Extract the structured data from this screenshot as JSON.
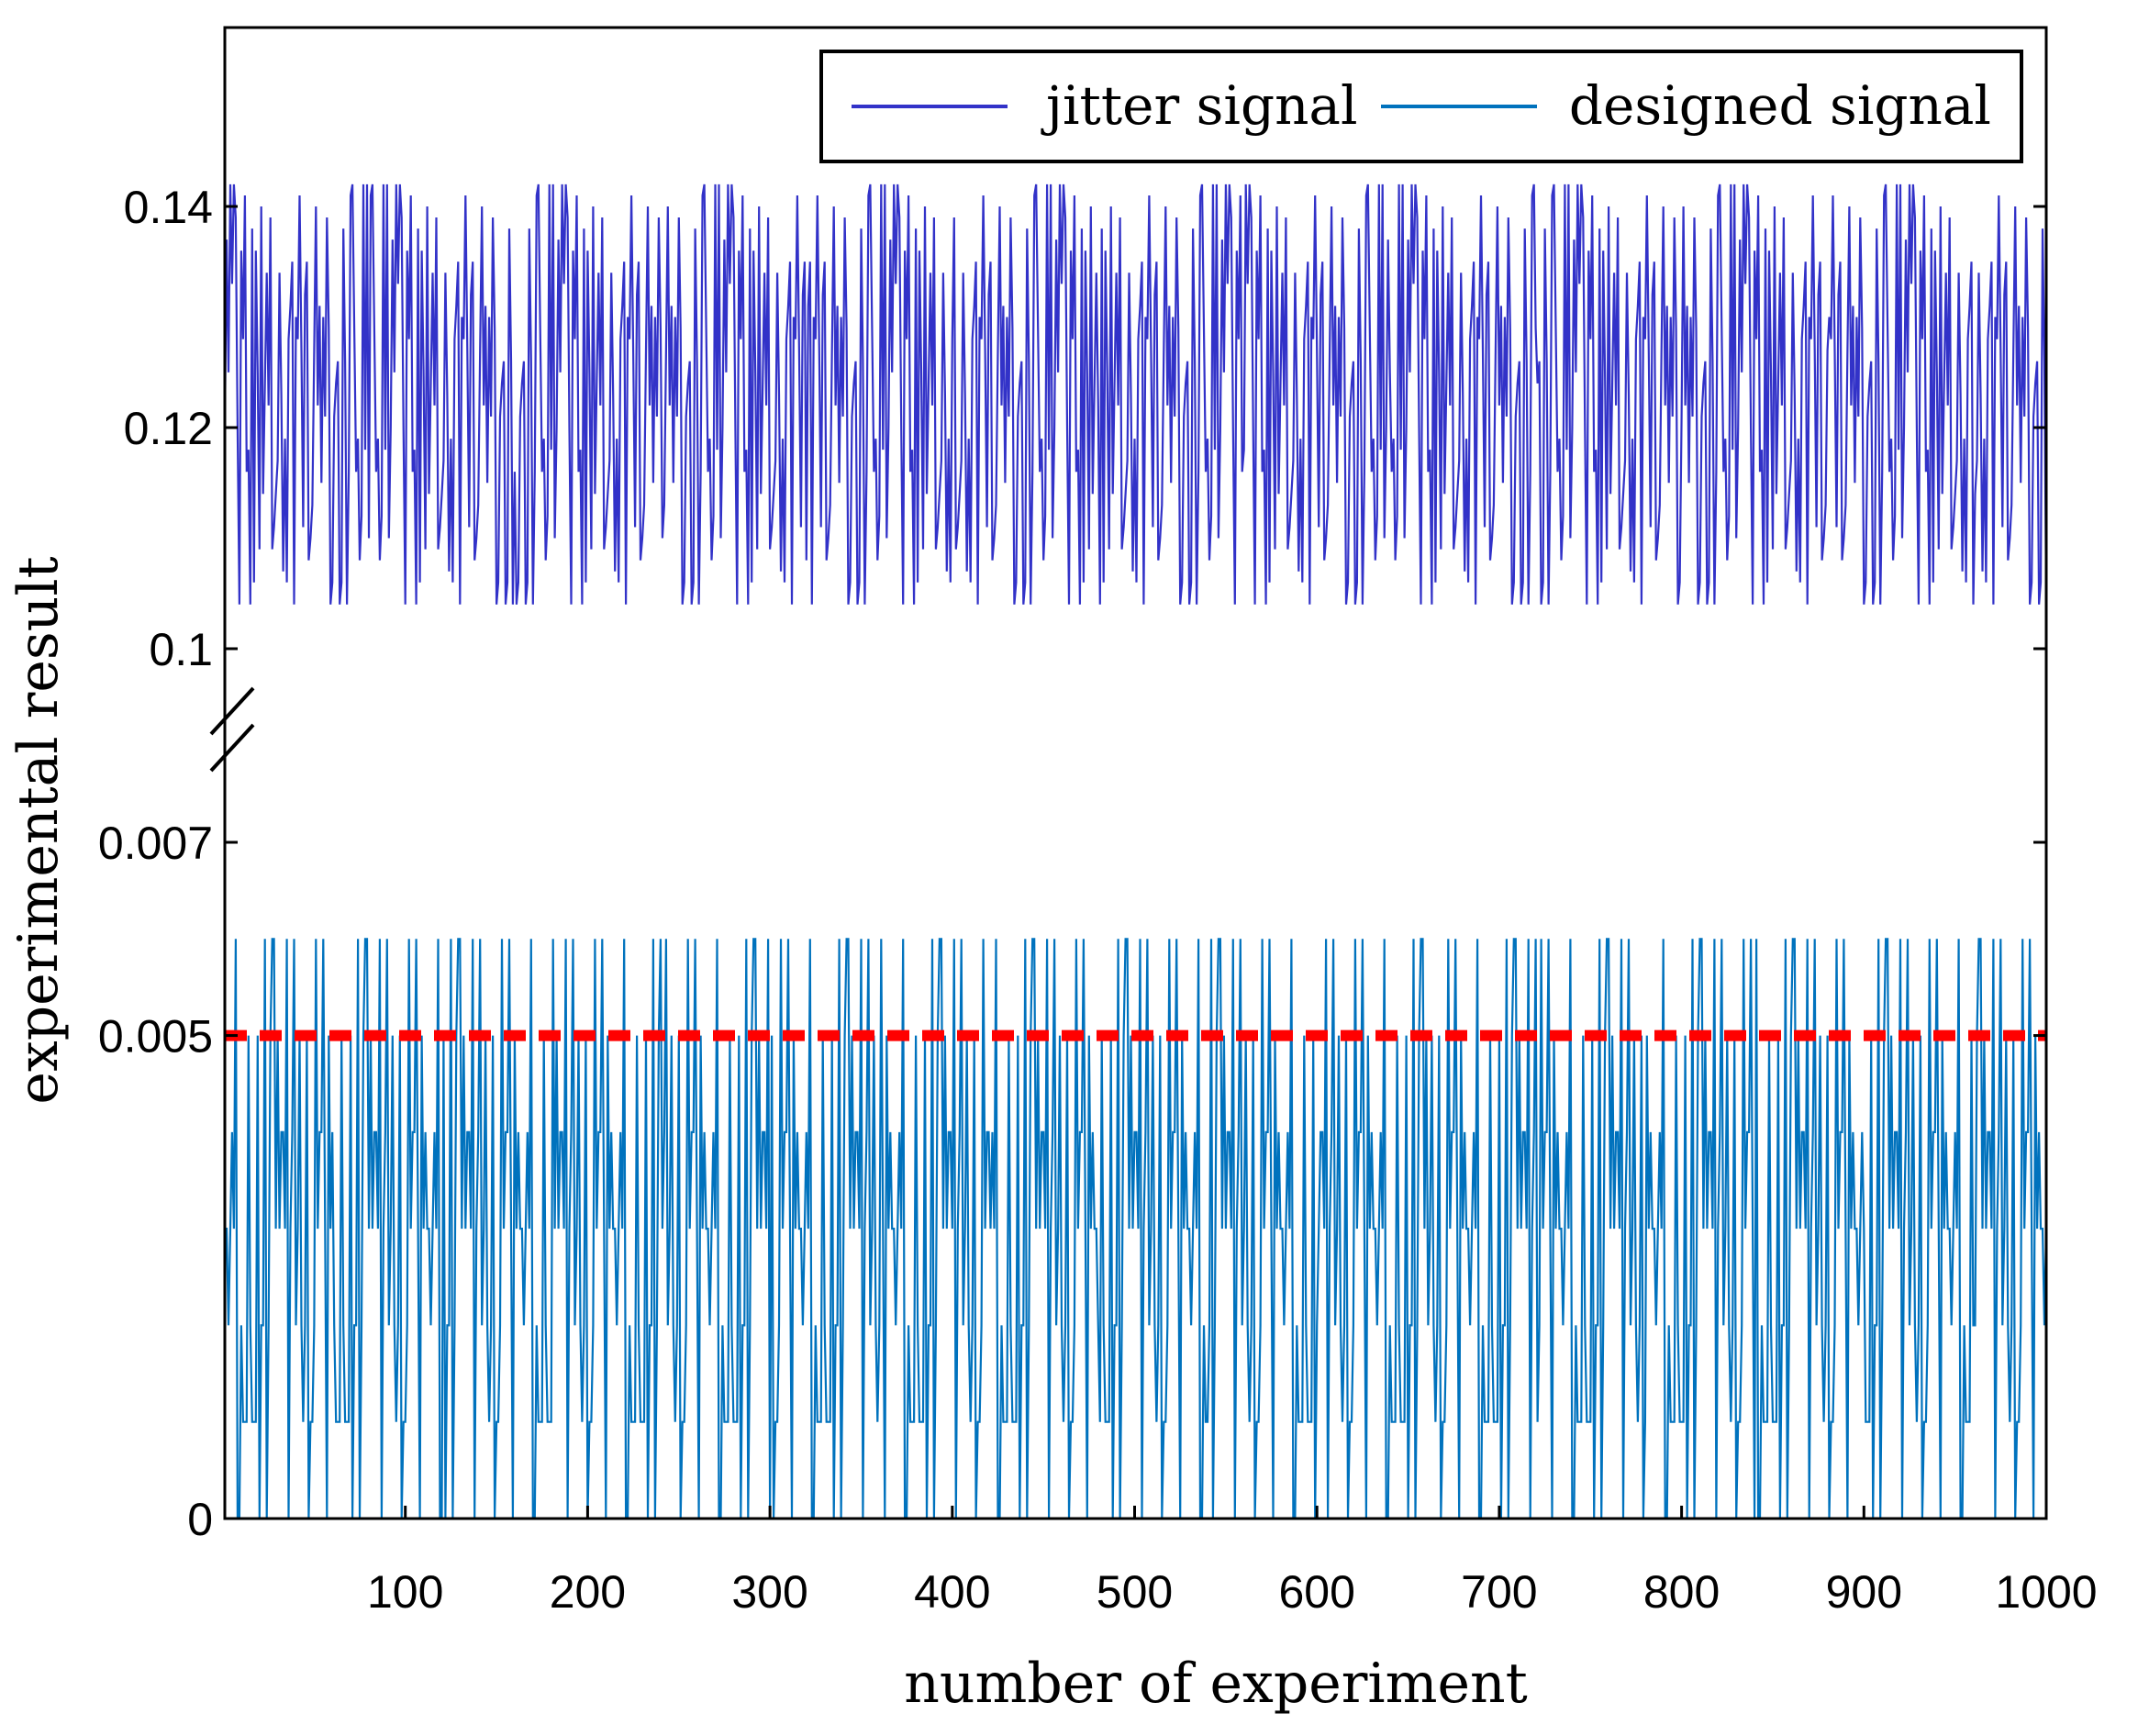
{
  "chart_data": {
    "type": "line",
    "title": "",
    "xlabel": "number of experiment",
    "ylabel": "experimental  result",
    "xlim": [
      1,
      1000
    ],
    "x_ticks": [
      {
        "value": 100,
        "label": "100"
      },
      {
        "value": 200,
        "label": "200"
      },
      {
        "value": 300,
        "label": "300"
      },
      {
        "value": 400,
        "label": "400"
      },
      {
        "value": 500,
        "label": "500"
      },
      {
        "value": 600,
        "label": "600"
      },
      {
        "value": 700,
        "label": "700"
      },
      {
        "value": 800,
        "label": "800"
      },
      {
        "value": 900,
        "label": "900"
      },
      {
        "value": 1000,
        "label": "1000"
      }
    ],
    "y_axis_break": {
      "lower_segment": [
        0,
        0.008
      ],
      "upper_segment": [
        0.09,
        0.148
      ]
    },
    "y_ticks": [
      {
        "value": 0,
        "label": "0"
      },
      {
        "value": 0.005,
        "label": "0.005"
      },
      {
        "value": 0.007,
        "label": "0.007"
      },
      {
        "value": 0.1,
        "label": "0.1"
      },
      {
        "value": 0.12,
        "label": "0.12"
      },
      {
        "value": 0.14,
        "label": "0.14"
      }
    ],
    "grid": false,
    "legend_position": "top-right",
    "series": [
      {
        "name": "jitter signal",
        "color": "#3232c8",
        "n_points": 1000,
        "levels": [
          0.104,
          0.106,
          0.108,
          0.11,
          0.112,
          0.114,
          0.116,
          0.118,
          0.12,
          0.122,
          0.124,
          0.126,
          0.128,
          0.13,
          0.132,
          0.134,
          0.136,
          0.138,
          0.14,
          0.142
        ],
        "pattern": [
          0.12,
          0.134,
          0.108,
          0.141,
          0.116,
          0.128,
          0.104,
          0.137,
          0.122,
          0.11,
          0.142,
          0.118,
          0.131,
          0.106,
          0.125,
          0.139,
          0.113,
          0.129,
          0.104,
          0.135,
          0.121,
          0.142,
          0.109,
          0.127,
          0.116,
          0.138,
          0.104,
          0.124,
          0.133,
          0.111,
          0.14,
          0.119,
          0.106,
          0.13,
          0.126,
          0.142,
          0.114,
          0.122,
          0.108,
          0.136,
          0.128,
          0.104,
          0.139,
          0.117,
          0.131,
          0.112,
          0.125,
          0.141,
          0.106,
          0.12,
          0.134,
          0.115,
          0.142,
          0.109,
          0.127,
          0.138,
          0.104,
          0.123,
          0.13,
          0.118,
          0.14,
          0.111,
          0.126,
          0.136,
          0.107,
          0.121,
          0.142,
          0.114,
          0.132,
          0.104,
          0.128,
          0.119,
          0.139,
          0.11,
          0.124,
          0.135,
          0.116,
          0.141,
          0.106,
          0.129
        ]
      },
      {
        "name": "designed signal",
        "color": "#0072bd",
        "n_points": 1000,
        "levels": [
          0,
          0.001,
          0.002,
          0.003,
          0.004,
          0.005,
          0.006
        ],
        "pattern": [
          0.003,
          0.001,
          0.006,
          0.002,
          0.004,
          0,
          0.005,
          0.003,
          0.002,
          0.006,
          0.001,
          0.004,
          0.003,
          0,
          0.002,
          0.005,
          0.003,
          0.001,
          0.006,
          0.004,
          0.002,
          0.003,
          0,
          0.005,
          0.001,
          0.003,
          0.006,
          0.002,
          0.004,
          0.001,
          0.003,
          0.005,
          0,
          0.002,
          0.006,
          0.003,
          0.001,
          0.004,
          0.002,
          0.005,
          0.003,
          0,
          0.006,
          0.002,
          0.004,
          0.001,
          0.003,
          0.005,
          0.002,
          0,
          0.006,
          0.003,
          0.001,
          0.004,
          0.002,
          0.005,
          0,
          0.003,
          0.006,
          0.001
        ]
      }
    ],
    "reference_line": {
      "y": 0.005,
      "color": "#ff0000",
      "style": "dashed"
    }
  }
}
